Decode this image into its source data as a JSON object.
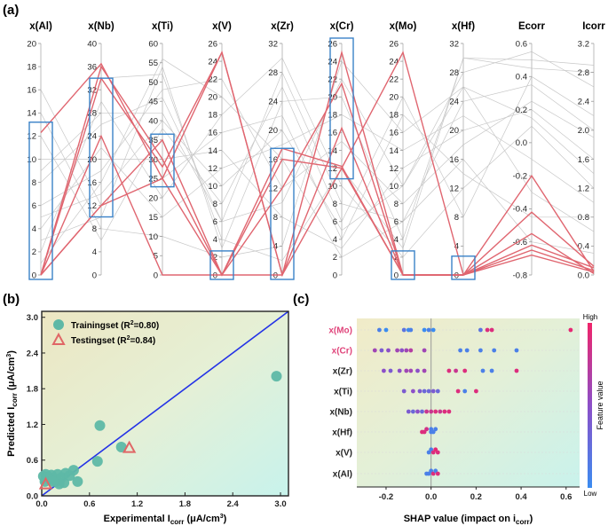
{
  "panels": {
    "a": "(a)",
    "b": "(b)",
    "c": "(c)"
  },
  "chart_data": [
    {
      "type": "parallel-coordinates",
      "panel": "(a)",
      "axes": [
        {
          "name": "x(Al)",
          "range": [
            0,
            20
          ],
          "ticks": [
            "0",
            "2",
            "4",
            "6",
            "8",
            "10",
            "12",
            "14",
            "16",
            "18",
            "20"
          ]
        },
        {
          "name": "x(Nb)",
          "range": [
            0,
            40
          ],
          "ticks": [
            "0",
            "4",
            "8",
            "12",
            "16",
            "20",
            "24",
            "28",
            "32",
            "36",
            "40"
          ]
        },
        {
          "name": "x(Ti)",
          "range": [
            0,
            60
          ],
          "ticks": [
            "0",
            "5",
            "10",
            "15",
            "20",
            "25",
            "30",
            "35",
            "40",
            "45",
            "50",
            "55",
            "60"
          ]
        },
        {
          "name": "x(V)",
          "range": [
            0,
            26
          ],
          "ticks": [
            "0",
            "2",
            "4",
            "6",
            "8",
            "10",
            "12",
            "14",
            "16",
            "18",
            "20",
            "22",
            "24",
            "26"
          ]
        },
        {
          "name": "x(Zr)",
          "range": [
            0,
            32
          ],
          "ticks": [
            "0",
            "4",
            "8",
            "12",
            "16",
            "20",
            "24",
            "28",
            "32"
          ]
        },
        {
          "name": "x(Cr)",
          "range": [
            0,
            26
          ],
          "ticks": [
            "0",
            "2",
            "4",
            "6",
            "8",
            "10",
            "12",
            "14",
            "16",
            "18",
            "20",
            "22",
            "24",
            "26"
          ]
        },
        {
          "name": "x(Mo)",
          "range": [
            0,
            26
          ],
          "ticks": [
            "0",
            "2",
            "4",
            "6",
            "8",
            "10",
            "12",
            "14",
            "16",
            "18",
            "20",
            "22",
            "24",
            "26"
          ]
        },
        {
          "name": "x(Hf)",
          "range": [
            0,
            32
          ],
          "ticks": [
            "0",
            "4",
            "8",
            "12",
            "16",
            "20",
            "24",
            "28",
            "32"
          ]
        },
        {
          "name": "Ecorr",
          "range": [
            -0.8,
            0.6
          ],
          "ticks": [
            "-0.8",
            "-0.6",
            "-0.4",
            "-0.2",
            "0.0",
            "0.2",
            "0.4",
            "0.6"
          ]
        },
        {
          "name": "Icorr",
          "range": [
            0,
            3.2
          ],
          "ticks": [
            "0.0",
            "0.4",
            "0.8",
            "1.2",
            "1.6",
            "2.0",
            "2.4",
            "2.8",
            "3.2"
          ]
        }
      ],
      "highlighted_series": [
        [
          12.3,
          36.5,
          25.0,
          0,
          0,
          25.0,
          0,
          0,
          -0.55,
          0.02
        ],
        [
          0,
          34.0,
          28.0,
          25.0,
          0,
          16.5,
          0,
          0,
          -0.2,
          0.05
        ],
        [
          0,
          12.0,
          35.0,
          0,
          17.5,
          12.2,
          0,
          0,
          -0.42,
          0.12
        ],
        [
          0,
          24.0,
          0,
          0,
          12.0,
          21.5,
          0,
          0,
          -0.62,
          0.1
        ],
        [
          0,
          12.0,
          25.0,
          25.0,
          0,
          12.0,
          0,
          0,
          -0.65,
          0.06
        ],
        [
          0,
          36.0,
          30.0,
          0,
          16.0,
          12.0,
          25.0,
          0,
          -0.68,
          0.04
        ]
      ],
      "background_series": [
        [
          5,
          14,
          40,
          10,
          20,
          5,
          10,
          28,
          0.55,
          2.6
        ],
        [
          8,
          26,
          46,
          6,
          28,
          8,
          6,
          24,
          0.35,
          2.0
        ],
        [
          3,
          10,
          54,
          3,
          24,
          20,
          4,
          30,
          0.5,
          2.9
        ],
        [
          10,
          20,
          30,
          14,
          8,
          3,
          12,
          20,
          0.2,
          1.6
        ],
        [
          2,
          30,
          20,
          18,
          30,
          10,
          2,
          12,
          0.1,
          1.2
        ],
        [
          14,
          8,
          10,
          2,
          4,
          24,
          16,
          26,
          -0.3,
          0.6
        ],
        [
          6,
          18,
          48,
          22,
          12,
          15,
          8,
          18,
          0.25,
          1.9
        ],
        [
          12,
          6,
          38,
          8,
          26,
          6,
          20,
          8,
          0.4,
          2.2
        ],
        [
          4,
          22,
          15,
          12,
          18,
          18,
          14,
          22,
          -0.1,
          1.0
        ],
        [
          0,
          34,
          52,
          4,
          2,
          12,
          3,
          30,
          0.45,
          2.8
        ],
        [
          16,
          12,
          25,
          16,
          22,
          4,
          18,
          14,
          -0.45,
          0.8
        ],
        [
          9,
          28,
          42,
          6,
          10,
          22,
          10,
          26,
          0.15,
          1.4
        ],
        [
          1,
          16,
          56,
          20,
          16,
          2,
          6,
          16,
          -0.6,
          0.3
        ]
      ]
    },
    {
      "type": "scatter",
      "panel": "(b)",
      "xlabel": "Experimental I",
      "xlabel_sub": "corr",
      "xlabel_unit": " (μA/cm",
      "xlabel_sup": "3",
      "xlabel_end": ")",
      "ylabel": "Predicted I",
      "ylabel_sub": "corr",
      "ylabel_unit": " (μA/cm",
      "ylabel_sup": "3",
      "ylabel_end": ")",
      "xlim": [
        0,
        3.1
      ],
      "ylim": [
        0,
        3.1
      ],
      "xticks": [
        "0.0",
        "0.6",
        "1.2",
        "1.8",
        "2.4",
        "3.0"
      ],
      "yticks": [
        "0.0",
        "0.6",
        "1.2",
        "1.8",
        "2.4",
        "3.0"
      ],
      "series": [
        {
          "name": "Trainingset",
          "label_prefix": "Trainingset (R",
          "label_sup": "2",
          "label_suffix": "=0.80)",
          "marker": "circle",
          "color": "#5eb8a6",
          "points": [
            [
              0.02,
              0.33
            ],
            [
              0.05,
              0.36
            ],
            [
              0.08,
              0.32
            ],
            [
              0.1,
              0.28
            ],
            [
              0.12,
              0.35
            ],
            [
              0.15,
              0.3
            ],
            [
              0.18,
              0.24
            ],
            [
              0.2,
              0.36
            ],
            [
              0.22,
              0.2
            ],
            [
              0.25,
              0.31
            ],
            [
              0.28,
              0.22
            ],
            [
              0.3,
              0.38
            ],
            [
              0.35,
              0.34
            ],
            [
              0.4,
              0.43
            ],
            [
              0.45,
              0.24
            ],
            [
              0.7,
              0.58
            ],
            [
              0.73,
              1.18
            ],
            [
              1.0,
              0.82
            ],
            [
              2.95,
              2.01
            ],
            [
              0.04,
              0.24
            ],
            [
              0.14,
              0.24
            ]
          ]
        },
        {
          "name": "Testingset",
          "label_prefix": "Testingset (R",
          "label_sup": "2",
          "label_suffix": "=0.84)",
          "marker": "triangle",
          "color": "#e06666",
          "points": [
            [
              0.05,
              0.2
            ],
            [
              1.1,
              0.81
            ]
          ]
        }
      ]
    },
    {
      "type": "beeswarm",
      "panel": "(c)",
      "xlabel": "SHAP value (impact on i",
      "xlabel_sub": "corr",
      "xlabel_end": ")",
      "xlim": [
        -0.33,
        0.66
      ],
      "xticks": [
        "-0.2",
        "0.0",
        "0.2",
        "0.4",
        "0.6"
      ],
      "colorbar": {
        "title": "Feature value",
        "high": "High",
        "low": "Low"
      },
      "features": [
        {
          "name": "x(Mo)",
          "label_color": "#e0457b",
          "points": [
            [
              -0.23,
              0.1
            ],
            [
              -0.2,
              0.0
            ],
            [
              -0.12,
              0.2
            ],
            [
              -0.1,
              0.0
            ],
            [
              -0.09,
              0.1
            ],
            [
              -0.03,
              0.0
            ],
            [
              -0.01,
              0.1
            ],
            [
              0.01,
              0.0
            ],
            [
              0.22,
              0.2
            ],
            [
              0.25,
              0.9
            ],
            [
              0.27,
              0.9
            ],
            [
              0.62,
              0.95
            ]
          ]
        },
        {
          "name": "x(Cr)",
          "label_color": "#e0457b",
          "points": [
            [
              -0.25,
              0.6
            ],
            [
              -0.22,
              0.4
            ],
            [
              -0.19,
              0.5
            ],
            [
              -0.15,
              0.6
            ],
            [
              -0.13,
              0.5
            ],
            [
              -0.11,
              0.6
            ],
            [
              -0.09,
              0.7
            ],
            [
              -0.03,
              0.6
            ],
            [
              0.13,
              0.1
            ],
            [
              0.16,
              0.1
            ],
            [
              0.22,
              0.1
            ],
            [
              0.28,
              0.1
            ],
            [
              0.38,
              0.1
            ]
          ]
        },
        {
          "name": "x(Zr)",
          "label_color": "#222222",
          "points": [
            [
              -0.21,
              0.5
            ],
            [
              -0.18,
              0.4
            ],
            [
              -0.14,
              0.5
            ],
            [
              -0.11,
              0.6
            ],
            [
              -0.09,
              0.6
            ],
            [
              -0.06,
              0.5
            ],
            [
              -0.03,
              0.6
            ],
            [
              0.08,
              0.9
            ],
            [
              0.11,
              0.8
            ],
            [
              0.15,
              0.9
            ],
            [
              0.23,
              0.1
            ],
            [
              0.27,
              0.1
            ],
            [
              0.38,
              0.9
            ]
          ]
        },
        {
          "name": "x(Ti)",
          "label_color": "#222222",
          "points": [
            [
              -0.12,
              0.4
            ],
            [
              -0.08,
              0.5
            ],
            [
              -0.05,
              0.4
            ],
            [
              -0.03,
              0.3
            ],
            [
              -0.01,
              0.3
            ],
            [
              0.01,
              0.4
            ],
            [
              0.03,
              0.3
            ],
            [
              0.12,
              0.9
            ],
            [
              0.15,
              0.1
            ],
            [
              0.2,
              0.9
            ]
          ]
        },
        {
          "name": "x(Nb)",
          "label_color": "#222222",
          "points": [
            [
              -0.1,
              0.4
            ],
            [
              -0.06,
              0.5
            ],
            [
              -0.04,
              0.3
            ],
            [
              -0.02,
              0.8
            ],
            [
              0.0,
              0.8
            ],
            [
              0.02,
              0.9
            ],
            [
              0.04,
              0.8
            ],
            [
              0.06,
              0.9
            ],
            [
              0.08,
              0.9
            ],
            [
              -0.08,
              0.3
            ]
          ]
        },
        {
          "name": "x(Hf)",
          "label_color": "#222222",
          "points": [
            [
              -0.04,
              0.9
            ],
            [
              -0.03,
              0.9
            ],
            [
              -0.02,
              0.85
            ],
            [
              0.0,
              0.1
            ],
            [
              0.0,
              0.1
            ],
            [
              0.01,
              0.1
            ],
            [
              0.02,
              0.1
            ]
          ]
        },
        {
          "name": "x(V)",
          "label_color": "#222222",
          "points": [
            [
              -0.01,
              0.1
            ],
            [
              0.0,
              0.1
            ],
            [
              0.01,
              0.9
            ],
            [
              0.02,
              0.95
            ],
            [
              0.03,
              0.9
            ]
          ]
        },
        {
          "name": "x(Al)",
          "label_color": "#222222",
          "points": [
            [
              -0.02,
              0.1
            ],
            [
              -0.01,
              0.1
            ],
            [
              0.0,
              0.1
            ],
            [
              0.01,
              0.9
            ],
            [
              0.02,
              0.1
            ],
            [
              0.03,
              0.9
            ]
          ]
        }
      ]
    }
  ]
}
